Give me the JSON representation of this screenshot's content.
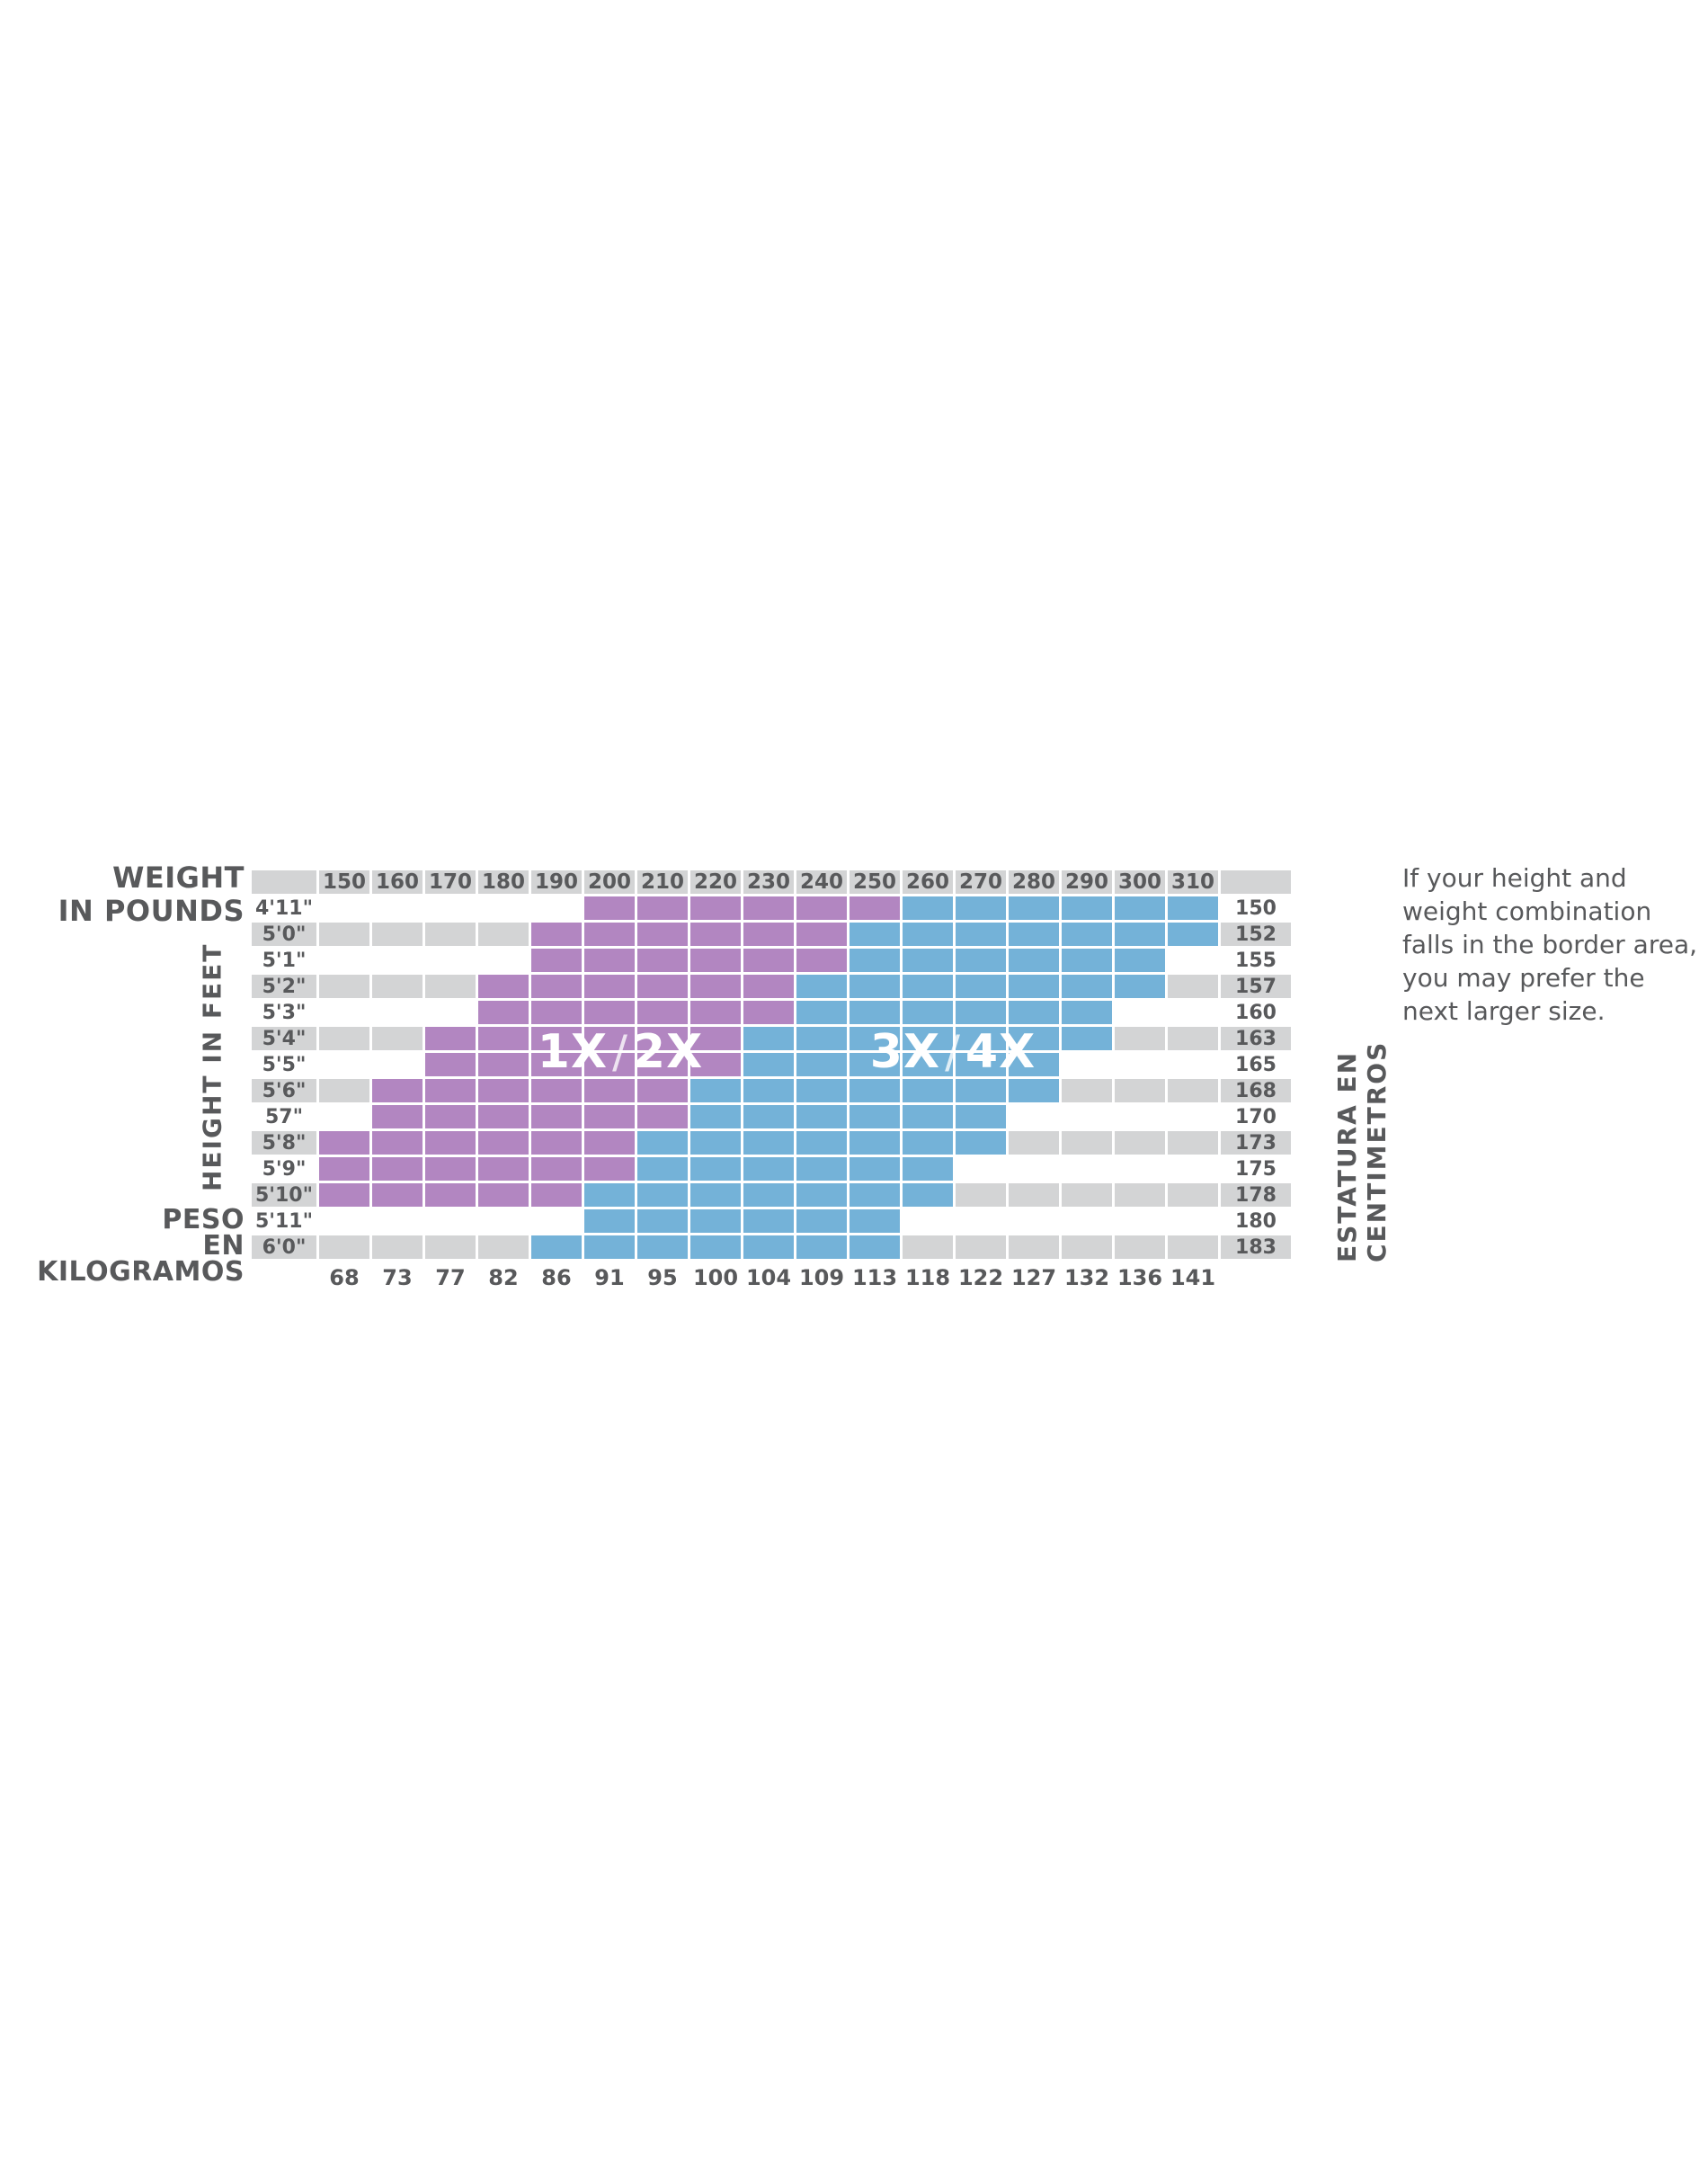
{
  "labels": {
    "weight_line1": "WEIGHT",
    "weight_line2": "IN POUNDS",
    "height_axis": "HEIGHT IN FEET",
    "peso_line1": "PESO",
    "peso_line2": "EN KILOGRAMOS",
    "estatura_axis": "ESTATURA EN CENTIMETROS"
  },
  "note": "If your height and weight combination falls in the border area, you may prefer the next larger size.",
  "regions": [
    {
      "a": "1X",
      "sep": "/",
      "b": "2X"
    },
    {
      "a": "3X",
      "sep": "/",
      "b": "4X"
    }
  ],
  "colors": {
    "purple": "#b286c1",
    "blue": "#74b2d8",
    "gray": "#d3d4d5",
    "text": "#58595b",
    "gridline": "#ffffff"
  },
  "chart_data": {
    "type": "heatmap",
    "legend": {
      "purple_region": "1X / 2X",
      "blue_region": "3X / 4X"
    },
    "weights_lb": [
      150,
      160,
      170,
      180,
      190,
      200,
      210,
      220,
      230,
      240,
      250,
      260,
      270,
      280,
      290,
      300,
      310
    ],
    "weights_kg": [
      68,
      73,
      77,
      82,
      86,
      91,
      95,
      100,
      104,
      109,
      113,
      118,
      122,
      127,
      132,
      136,
      141
    ],
    "rows": [
      {
        "ft": "4'11\"",
        "cm": "150",
        "shade": "white",
        "purple": [
          200,
          250
        ],
        "blue": [
          260,
          310
        ]
      },
      {
        "ft": "5'0\"",
        "cm": "152",
        "shade": "gray",
        "purple": [
          190,
          240
        ],
        "blue": [
          250,
          310
        ]
      },
      {
        "ft": "5'1\"",
        "cm": "155",
        "shade": "white",
        "purple": [
          190,
          240
        ],
        "blue": [
          250,
          300
        ]
      },
      {
        "ft": "5'2\"",
        "cm": "157",
        "shade": "gray",
        "purple": [
          180,
          230
        ],
        "blue": [
          240,
          300
        ]
      },
      {
        "ft": "5'3\"",
        "cm": "160",
        "shade": "white",
        "purple": [
          180,
          230
        ],
        "blue": [
          240,
          290
        ]
      },
      {
        "ft": "5'4\"",
        "cm": "163",
        "shade": "gray",
        "purple": [
          170,
          220
        ],
        "blue": [
          230,
          290
        ]
      },
      {
        "ft": "5'5\"",
        "cm": "165",
        "shade": "white",
        "purple": [
          170,
          220
        ],
        "blue": [
          230,
          280
        ]
      },
      {
        "ft": "5'6\"",
        "cm": "168",
        "shade": "gray",
        "purple": [
          160,
          210
        ],
        "blue": [
          220,
          280
        ]
      },
      {
        "ft": "57\"",
        "cm": "170",
        "shade": "white",
        "purple": [
          160,
          210
        ],
        "blue": [
          220,
          270
        ]
      },
      {
        "ft": "5'8\"",
        "cm": "173",
        "shade": "gray",
        "purple": [
          150,
          200
        ],
        "blue": [
          210,
          270
        ]
      },
      {
        "ft": "5'9\"",
        "cm": "175",
        "shade": "white",
        "purple": [
          150,
          200
        ],
        "blue": [
          210,
          260
        ]
      },
      {
        "ft": "5'10\"",
        "cm": "178",
        "shade": "gray",
        "purple": [
          150,
          190
        ],
        "blue": [
          200,
          260
        ]
      },
      {
        "ft": "5'11\"",
        "cm": "180",
        "shade": "white",
        "purple": null,
        "blue": [
          200,
          250
        ]
      },
      {
        "ft": "6'0\"",
        "cm": "183",
        "shade": "gray",
        "purple": null,
        "blue": [
          190,
          250
        ]
      }
    ]
  }
}
